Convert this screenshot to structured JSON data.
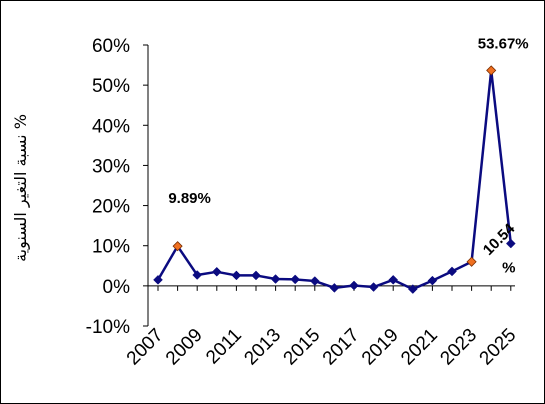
{
  "chart_data": {
    "type": "line",
    "title": "",
    "xlabel": "",
    "ylabel": "نسبة التغير السنوية %",
    "x": [
      2007,
      2008,
      2009,
      2010,
      2011,
      2012,
      2013,
      2014,
      2015,
      2016,
      2017,
      2018,
      2019,
      2020,
      2021,
      2022,
      2023,
      2024,
      2025
    ],
    "x_ticks": [
      "2007",
      "2009",
      "2011",
      "2013",
      "2015",
      "2017",
      "2019",
      "2021",
      "2023",
      "2025"
    ],
    "ylim": [
      -10,
      60
    ],
    "y_ticks": [
      "-10%",
      "0%",
      "10%",
      "20%",
      "30%",
      "40%",
      "50%",
      "60%"
    ],
    "grid": false,
    "series": [
      {
        "values": [
          1.5,
          9.89,
          2.7,
          3.5,
          2.6,
          2.6,
          1.7,
          1.6,
          1.2,
          -0.5,
          0.1,
          -0.3,
          1.5,
          -0.8,
          1.3,
          3.6,
          6.0,
          53.67,
          10.54
        ],
        "color": "#0b0b80",
        "highlight_color": "#f07020"
      }
    ],
    "highlighted_points": [
      1,
      16,
      17
    ],
    "annotations": [
      {
        "point": 1,
        "text": "9.89%"
      },
      {
        "point": 17,
        "text": "53.67%"
      },
      {
        "point": 18,
        "text": "10.54",
        "text2": "%"
      }
    ]
  }
}
